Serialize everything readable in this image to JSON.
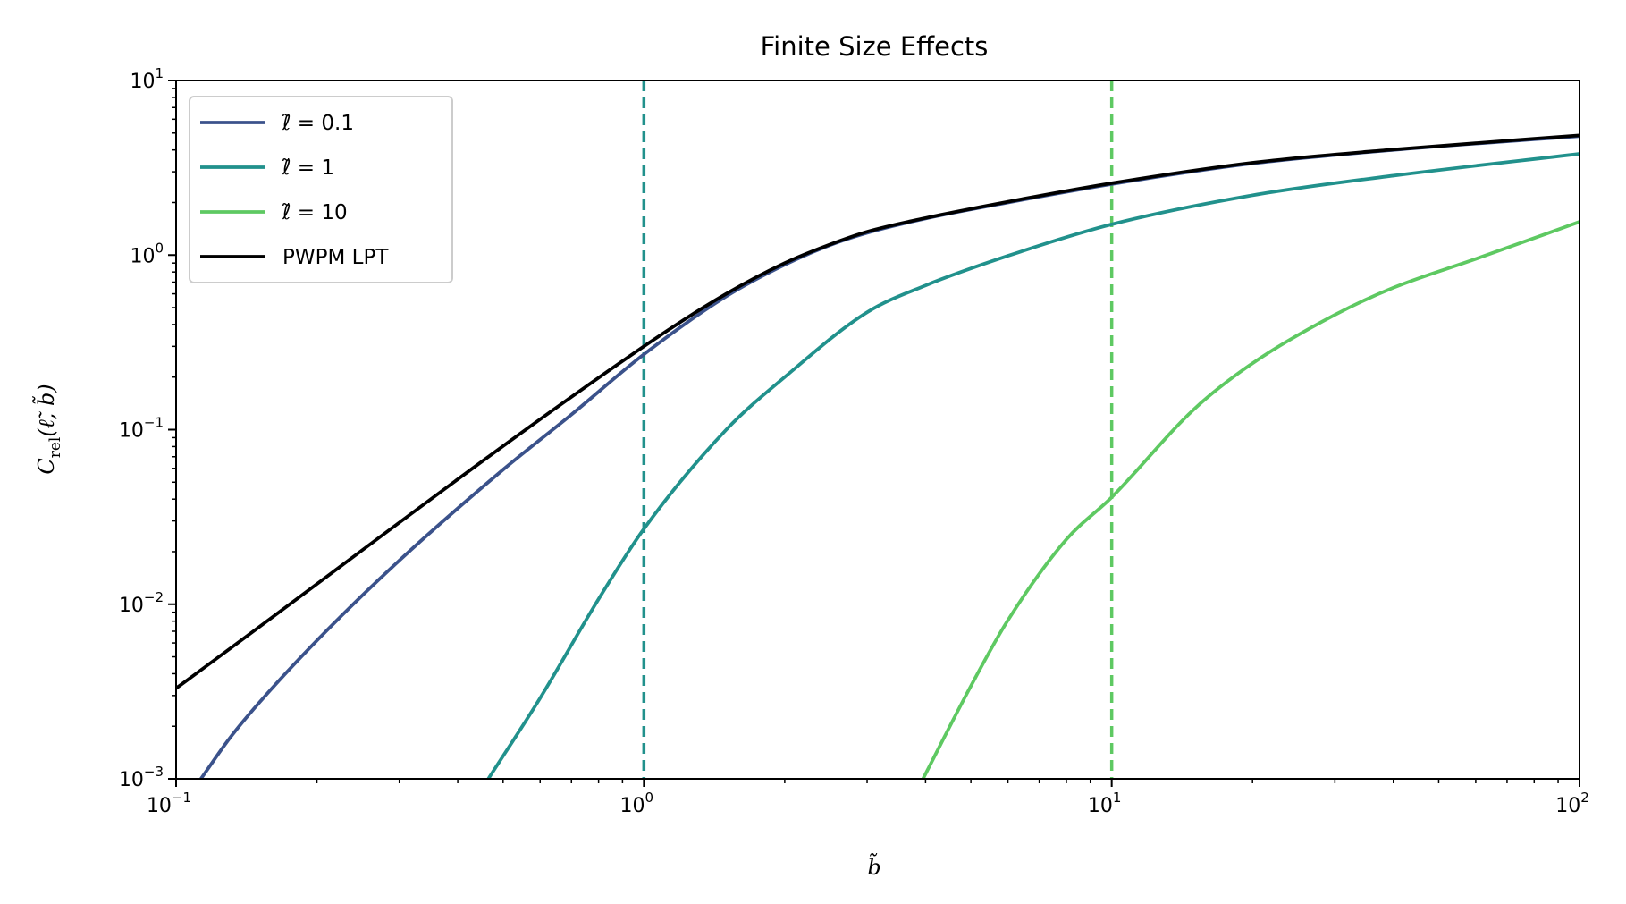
{
  "chart_data": {
    "type": "line",
    "title": "Finite Size Effects",
    "xlabel": "b̃",
    "ylabel": "C_rel(ℓ̃, b̃)",
    "ylabel_main": "C",
    "ylabel_sub": "rel",
    "ylabel_args": "(ℓ̃, b̃)",
    "xscale": "log",
    "yscale": "log",
    "xlim": [
      0.1,
      100
    ],
    "ylim": [
      0.001,
      10
    ],
    "x_ticks": [
      {
        "value": 0.1,
        "base": "10",
        "exp": "−1"
      },
      {
        "value": 1,
        "base": "10",
        "exp": "0"
      },
      {
        "value": 10,
        "base": "10",
        "exp": "1"
      },
      {
        "value": 100,
        "base": "10",
        "exp": "2"
      }
    ],
    "y_ticks": [
      {
        "value": 0.001,
        "base": "10",
        "exp": "−3"
      },
      {
        "value": 0.01,
        "base": "10",
        "exp": "−2"
      },
      {
        "value": 0.1,
        "base": "10",
        "exp": "−1"
      },
      {
        "value": 1,
        "base": "10",
        "exp": "0"
      },
      {
        "value": 10,
        "base": "10",
        "exp": "1"
      }
    ],
    "legend_position": "top-left",
    "series": [
      {
        "name": "ℓ̃ = 0.1",
        "color": "#3b528b",
        "x": [
          0.113,
          0.13,
          0.15,
          0.2,
          0.3,
          0.5,
          0.7,
          1.0,
          1.5,
          2.0,
          2.5,
          3.0,
          4.0,
          6.0,
          10,
          20,
          40,
          100
        ],
        "y": [
          0.001,
          0.0017,
          0.0027,
          0.0062,
          0.0178,
          0.059,
          0.122,
          0.27,
          0.58,
          0.88,
          1.14,
          1.34,
          1.62,
          2.0,
          2.55,
          3.35,
          4.0,
          4.8
        ]
      },
      {
        "name": "ℓ̃ = 1",
        "color": "#21918c",
        "x": [
          0.465,
          0.6,
          0.8,
          1.0,
          1.5,
          2.0,
          3.0,
          4.0,
          6.0,
          10,
          20,
          40,
          100
        ],
        "y": [
          0.001,
          0.0029,
          0.0107,
          0.027,
          0.1,
          0.2,
          0.47,
          0.67,
          0.99,
          1.5,
          2.2,
          2.85,
          3.8
        ]
      },
      {
        "name": "ℓ̃ = 10",
        "color": "#5ec962",
        "x": [
          3.95,
          5.0,
          6.0,
          8.0,
          10,
          15,
          20,
          30,
          40,
          60,
          100
        ],
        "y": [
          0.001,
          0.0034,
          0.0081,
          0.0235,
          0.041,
          0.131,
          0.24,
          0.455,
          0.65,
          0.95,
          1.55
        ]
      },
      {
        "name": "PWPM LPT",
        "color": "#000000",
        "x": [
          0.1,
          1.0,
          1.5,
          2.0,
          2.5,
          3.0,
          4.0,
          6.0,
          10,
          20,
          40,
          100
        ],
        "y": [
          0.0033,
          0.3,
          0.6,
          0.9,
          1.15,
          1.36,
          1.63,
          2.02,
          2.58,
          3.38,
          4.02,
          4.85
        ]
      }
    ],
    "vertical_lines": [
      {
        "x": 1,
        "color": "#21918c",
        "style": "dashed"
      },
      {
        "x": 10,
        "color": "#5ec962",
        "style": "dashed"
      }
    ]
  }
}
